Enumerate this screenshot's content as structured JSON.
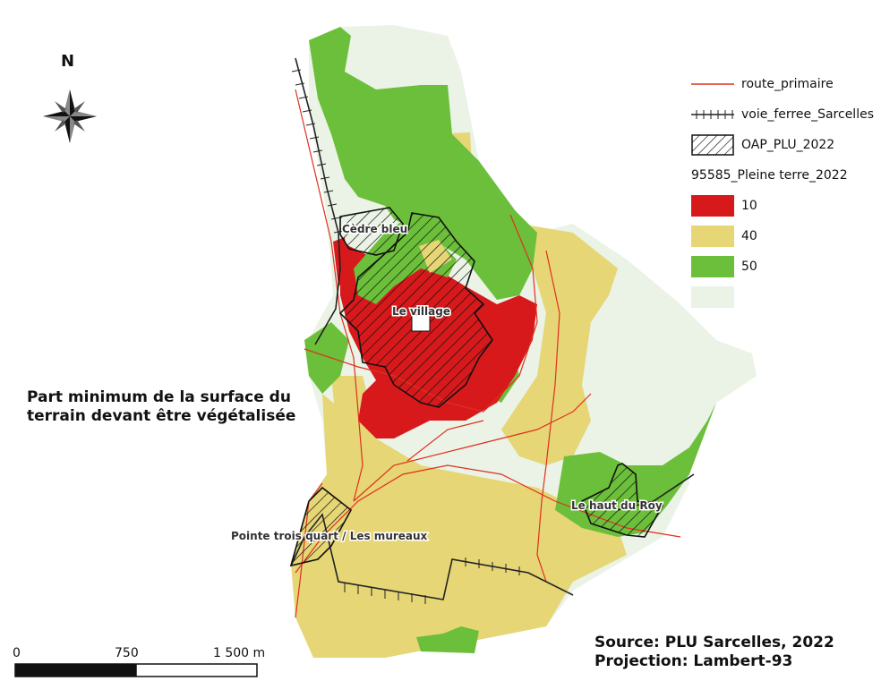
{
  "north_label": "N",
  "title_lines": [
    "Part minimum de la surface du",
    "terrain devant être  végétalisée"
  ],
  "legend": {
    "route": "route_primaire",
    "rail": "voie_ferree_Sarcelles",
    "oap": "OAP_PLU_2022",
    "layer_title": "95585_Pleine terre_2022",
    "classes": [
      {
        "label": "10",
        "color": "#d7191c"
      },
      {
        "label": "40",
        "color": "#e6d676"
      },
      {
        "label": "50",
        "color": "#6cbf3a"
      },
      {
        "label": "",
        "color": "#eaf3e6"
      }
    ]
  },
  "places": {
    "cedre": "Cèdre bleu",
    "village": "Le village",
    "haut_du_roy": "Le haut du Roy",
    "pointe": "Pointe trois quart / Les mureaux"
  },
  "scale": {
    "labels": [
      "0",
      "750",
      "1 500 m"
    ]
  },
  "source_lines": [
    "Source: PLU Sarcelles, 2022",
    "Projection: Lambert-93"
  ],
  "colors": {
    "route": "#e0301e",
    "rail": "#222222",
    "hatch": "#111111"
  }
}
